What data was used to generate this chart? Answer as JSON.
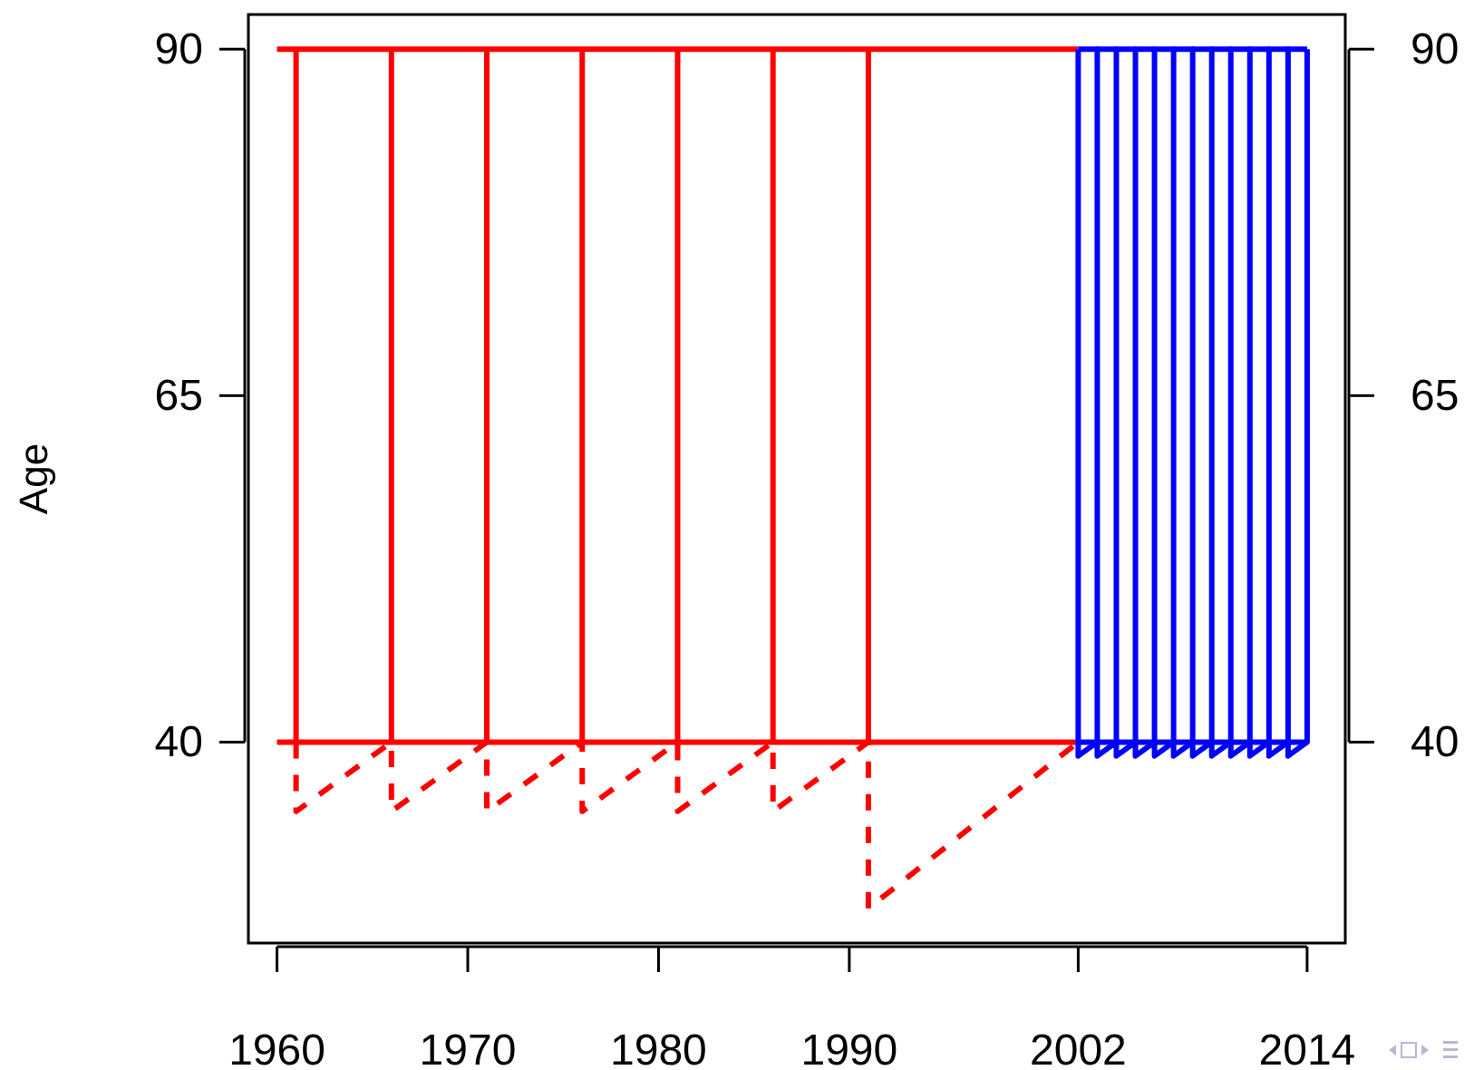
{
  "chart_data": {
    "type": "line",
    "ylabel": "Age",
    "xlim": [
      1958.5,
      2016
    ],
    "xticks": [
      1960,
      1970,
      1980,
      1990,
      2002,
      2014
    ],
    "ylim": [
      25.5,
      92.5
    ],
    "yticks": [
      40,
      65,
      90
    ],
    "y2lim": [
      25.5,
      92.5
    ],
    "y2ticks": [
      40,
      65,
      90
    ],
    "grid": false,
    "marker": "none",
    "series": [
      {
        "color": "#ff0000",
        "line_style": "solid",
        "x": [
          1960,
          2002
        ],
        "values": [
          90,
          90
        ]
      },
      {
        "color": "#ff0000",
        "line_style": "solid",
        "x": [
          1960,
          2002
        ],
        "values": [
          40,
          40
        ]
      },
      {
        "color": "#ff0000",
        "line_style": "solid",
        "x": [
          1961,
          1961
        ],
        "values": [
          40,
          90
        ]
      },
      {
        "color": "#ff0000",
        "line_style": "solid",
        "x": [
          1966,
          1966
        ],
        "values": [
          40,
          90
        ]
      },
      {
        "color": "#ff0000",
        "line_style": "solid",
        "x": [
          1971,
          1971
        ],
        "values": [
          40,
          90
        ]
      },
      {
        "color": "#ff0000",
        "line_style": "solid",
        "x": [
          1976,
          1976
        ],
        "values": [
          40,
          90
        ]
      },
      {
        "color": "#ff0000",
        "line_style": "solid",
        "x": [
          1981,
          1981
        ],
        "values": [
          40,
          90
        ]
      },
      {
        "color": "#ff0000",
        "line_style": "solid",
        "x": [
          1986,
          1986
        ],
        "values": [
          40,
          90
        ]
      },
      {
        "color": "#ff0000",
        "line_style": "solid",
        "x": [
          1991,
          1991
        ],
        "values": [
          40,
          90
        ]
      },
      {
        "color": "#ff0000",
        "line_style": "dashed",
        "x": [
          1961,
          1961,
          1966,
          1966,
          1971,
          1971,
          1976,
          1976,
          1981,
          1981,
          1986,
          1986,
          1991,
          1991,
          2002
        ],
        "values": [
          40,
          35,
          40,
          35,
          40,
          35,
          40,
          35,
          40,
          35,
          40,
          35,
          40,
          28,
          40
        ]
      },
      {
        "color": "#0000ff",
        "line_style": "solid",
        "x": [
          2002,
          2014
        ],
        "values": [
          90,
          90
        ]
      },
      {
        "color": "#0000ff",
        "line_style": "solid",
        "x": [
          2002,
          2014
        ],
        "values": [
          40,
          40
        ]
      },
      {
        "color": "#0000ff",
        "line_style": "solid",
        "x": [
          2002,
          2002,
          2003,
          2003,
          2003,
          2004,
          2004,
          2004,
          2005,
          2005,
          2005,
          2006,
          2006,
          2006,
          2007,
          2007,
          2007,
          2008,
          2008,
          2008,
          2009,
          2009,
          2009,
          2010,
          2010,
          2010,
          2011,
          2011,
          2011,
          2012,
          2012,
          2012,
          2013,
          2013,
          2013,
          2014,
          2014
        ],
        "values": [
          90,
          39,
          40,
          90,
          39,
          40,
          90,
          39,
          40,
          90,
          39,
          40,
          90,
          39,
          40,
          90,
          39,
          40,
          90,
          39,
          40,
          90,
          39,
          40,
          90,
          39,
          40,
          90,
          39,
          40,
          90,
          39,
          40,
          90,
          39,
          40,
          90
        ]
      }
    ]
  }
}
